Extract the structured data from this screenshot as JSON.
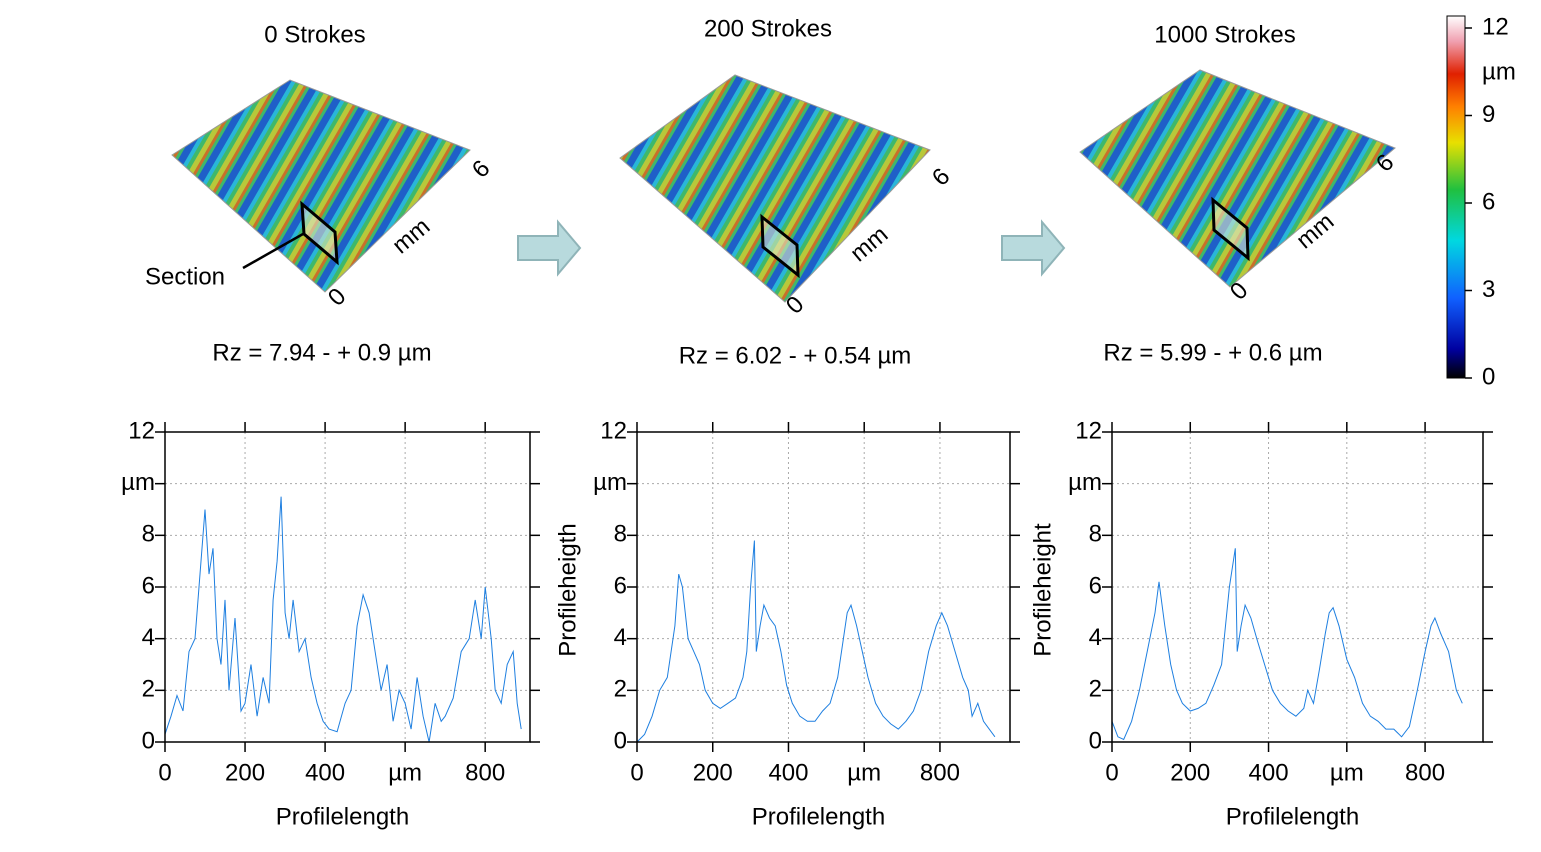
{
  "panels": [
    {
      "title": "0 Strokes",
      "rz": "Rz = 7.94  - + 0.9 µm",
      "axis_far": "6",
      "axis_unit": "mm",
      "axis_near": "0"
    },
    {
      "title": "200 Strokes",
      "rz": "Rz = 6.02 - + 0.54 µm",
      "axis_far": "6",
      "axis_unit": "mm",
      "axis_near": "0"
    },
    {
      "title": "1000 Strokes",
      "rz": "Rz = 5.99 - + 0.6 µm",
      "axis_far": "6",
      "axis_unit": "mm",
      "axis_near": "0"
    }
  ],
  "section_label": "Section",
  "colorbar": {
    "unit": "µm",
    "ylim": [
      0,
      12
    ],
    "yticks": [
      0,
      3,
      6,
      9,
      12
    ]
  },
  "chart_data": [
    {
      "type": "line",
      "xlabel": "Profilelength",
      "color": "#1e7fe0",
      "grid": true,
      "xlim": [
        0,
        912
      ],
      "xticks": [
        0,
        200,
        400,
        {
          "value": 600,
          "label": "µm"
        },
        800
      ],
      "ylim": [
        0,
        12
      ],
      "yticks": [
        0,
        2,
        4,
        6,
        8,
        {
          "value": 10,
          "label": "µm"
        },
        12
      ],
      "x": [
        0,
        15,
        30,
        45,
        60,
        75,
        90,
        100,
        110,
        120,
        130,
        140,
        150,
        160,
        175,
        190,
        200,
        215,
        230,
        245,
        260,
        270,
        280,
        290,
        300,
        310,
        320,
        335,
        350,
        365,
        380,
        395,
        410,
        430,
        450,
        465,
        480,
        495,
        510,
        525,
        540,
        555,
        570,
        585,
        600,
        615,
        630,
        645,
        660,
        675,
        690,
        700,
        720,
        740,
        760,
        775,
        790,
        800,
        815,
        825,
        840,
        855,
        870,
        880,
        890
      ],
      "values": [
        0.3,
        1,
        1.8,
        1.2,
        3.5,
        4,
        7,
        9,
        6.5,
        7.5,
        4,
        3,
        5.5,
        2,
        4.8,
        1.2,
        1.5,
        3,
        1,
        2.5,
        1.5,
        5.5,
        7,
        9.5,
        5,
        4,
        5.5,
        3.5,
        4,
        2.5,
        1.5,
        0.8,
        0.5,
        0.4,
        1.5,
        2,
        4.5,
        5.7,
        5,
        3.5,
        2,
        3,
        0.8,
        2,
        1.5,
        0.5,
        2.5,
        1,
        0,
        1.5,
        0.8,
        1,
        1.7,
        3.5,
        4,
        5.5,
        4,
        6,
        4,
        2,
        1.5,
        3,
        3.5,
        1.5,
        0.5
      ]
    },
    {
      "type": "line",
      "xlabel": "Profilelength",
      "ylabel": "Profileheigth",
      "color": "#1e7fe0",
      "grid": true,
      "xlim": [
        0,
        985
      ],
      "xticks": [
        0,
        200,
        400,
        {
          "value": 600,
          "label": "µm"
        },
        800
      ],
      "ylim": [
        0,
        12
      ],
      "yticks": [
        0,
        2,
        4,
        6,
        8,
        {
          "value": 10,
          "label": "µm"
        },
        12
      ],
      "x": [
        0,
        20,
        40,
        60,
        80,
        100,
        110,
        120,
        135,
        150,
        165,
        180,
        200,
        220,
        240,
        260,
        280,
        290,
        300,
        310,
        315,
        325,
        335,
        350,
        365,
        380,
        395,
        410,
        430,
        450,
        470,
        490,
        510,
        530,
        545,
        555,
        565,
        580,
        595,
        610,
        630,
        650,
        670,
        690,
        710,
        730,
        750,
        770,
        790,
        805,
        820,
        840,
        860,
        875,
        885,
        900,
        915,
        930,
        945
      ],
      "values": [
        0,
        0.3,
        1,
        2,
        2.5,
        4.5,
        6.5,
        6,
        4,
        3.5,
        3,
        2,
        1.5,
        1.3,
        1.5,
        1.7,
        2.5,
        3.5,
        6,
        7.8,
        3.5,
        4.5,
        5.3,
        4.8,
        4.5,
        3.5,
        2.2,
        1.5,
        1,
        0.8,
        0.8,
        1.2,
        1.5,
        2.5,
        4,
        5,
        5.3,
        4.5,
        3.5,
        2.5,
        1.5,
        1,
        0.7,
        0.5,
        0.8,
        1.2,
        2,
        3.5,
        4.5,
        5,
        4.5,
        3.5,
        2.5,
        2,
        1,
        1.5,
        0.8,
        0.5,
        0.2
      ]
    },
    {
      "type": "line",
      "xlabel": "Profilelength",
      "ylabel": "Profileheight",
      "color": "#1e7fe0",
      "grid": true,
      "xlim": [
        0,
        948
      ],
      "xticks": [
        0,
        200,
        400,
        {
          "value": 600,
          "label": "µm"
        },
        800
      ],
      "ylim": [
        0,
        12
      ],
      "yticks": [
        0,
        2,
        4,
        6,
        8,
        {
          "value": 10,
          "label": "µm"
        },
        12
      ],
      "x": [
        0,
        15,
        30,
        50,
        70,
        90,
        110,
        120,
        135,
        150,
        165,
        180,
        200,
        220,
        240,
        260,
        280,
        300,
        315,
        320,
        330,
        340,
        355,
        370,
        390,
        410,
        430,
        450,
        470,
        490,
        500,
        515,
        530,
        545,
        555,
        565,
        580,
        600,
        620,
        640,
        660,
        680,
        700,
        720,
        740,
        760,
        780,
        800,
        815,
        825,
        840,
        860,
        880,
        895
      ],
      "values": [
        0.8,
        0.2,
        0.1,
        0.8,
        2,
        3.5,
        5,
        6.2,
        4.5,
        3,
        2,
        1.5,
        1.2,
        1.3,
        1.5,
        2.2,
        3,
        6,
        7.5,
        3.5,
        4.5,
        5.3,
        4.8,
        4,
        3,
        2,
        1.5,
        1.2,
        1,
        1.3,
        2,
        1.5,
        2.8,
        4.2,
        5,
        5.2,
        4.5,
        3.2,
        2.5,
        1.5,
        1,
        0.8,
        0.5,
        0.5,
        0.2,
        0.6,
        2,
        3.5,
        4.5,
        4.8,
        4.2,
        3.5,
        2,
        1.5
      ]
    }
  ]
}
